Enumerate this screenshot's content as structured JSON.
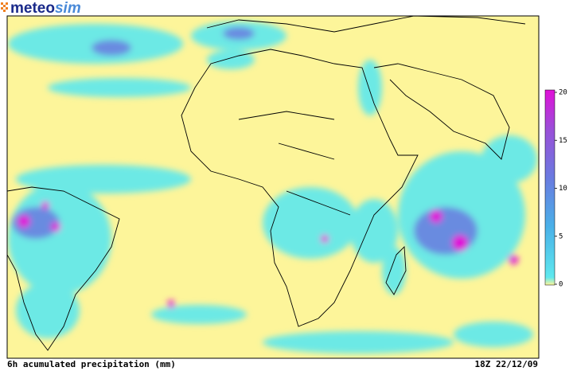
{
  "logo": {
    "part1": "meteo",
    "part2": "sim"
  },
  "colorbar": {
    "lim": [
      0,
      20
    ],
    "ticks": [
      0,
      5,
      10,
      15,
      20
    ]
  },
  "footer": {
    "left": "6h acumulated precipitation (mm)",
    "right": "18Z 22/12/09"
  }
}
